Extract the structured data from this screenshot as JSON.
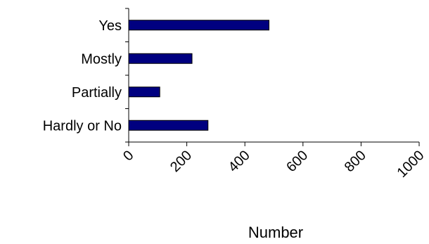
{
  "chart_data": {
    "type": "bar",
    "orientation": "horizontal",
    "categories": [
      "Yes",
      "Mostly",
      "Partially",
      "Hardly or No"
    ],
    "values": [
      483,
      218,
      107,
      273
    ],
    "xlabel": "Number",
    "ylabel": "",
    "xlim": [
      0,
      1000
    ],
    "xticks": [
      "0",
      "200",
      "400",
      "600",
      "800",
      "1000"
    ],
    "grid": false,
    "legend": "none",
    "colors": {
      "bar_fill": "#000080",
      "bar_stroke": "#000000",
      "axis": "#000000"
    }
  }
}
